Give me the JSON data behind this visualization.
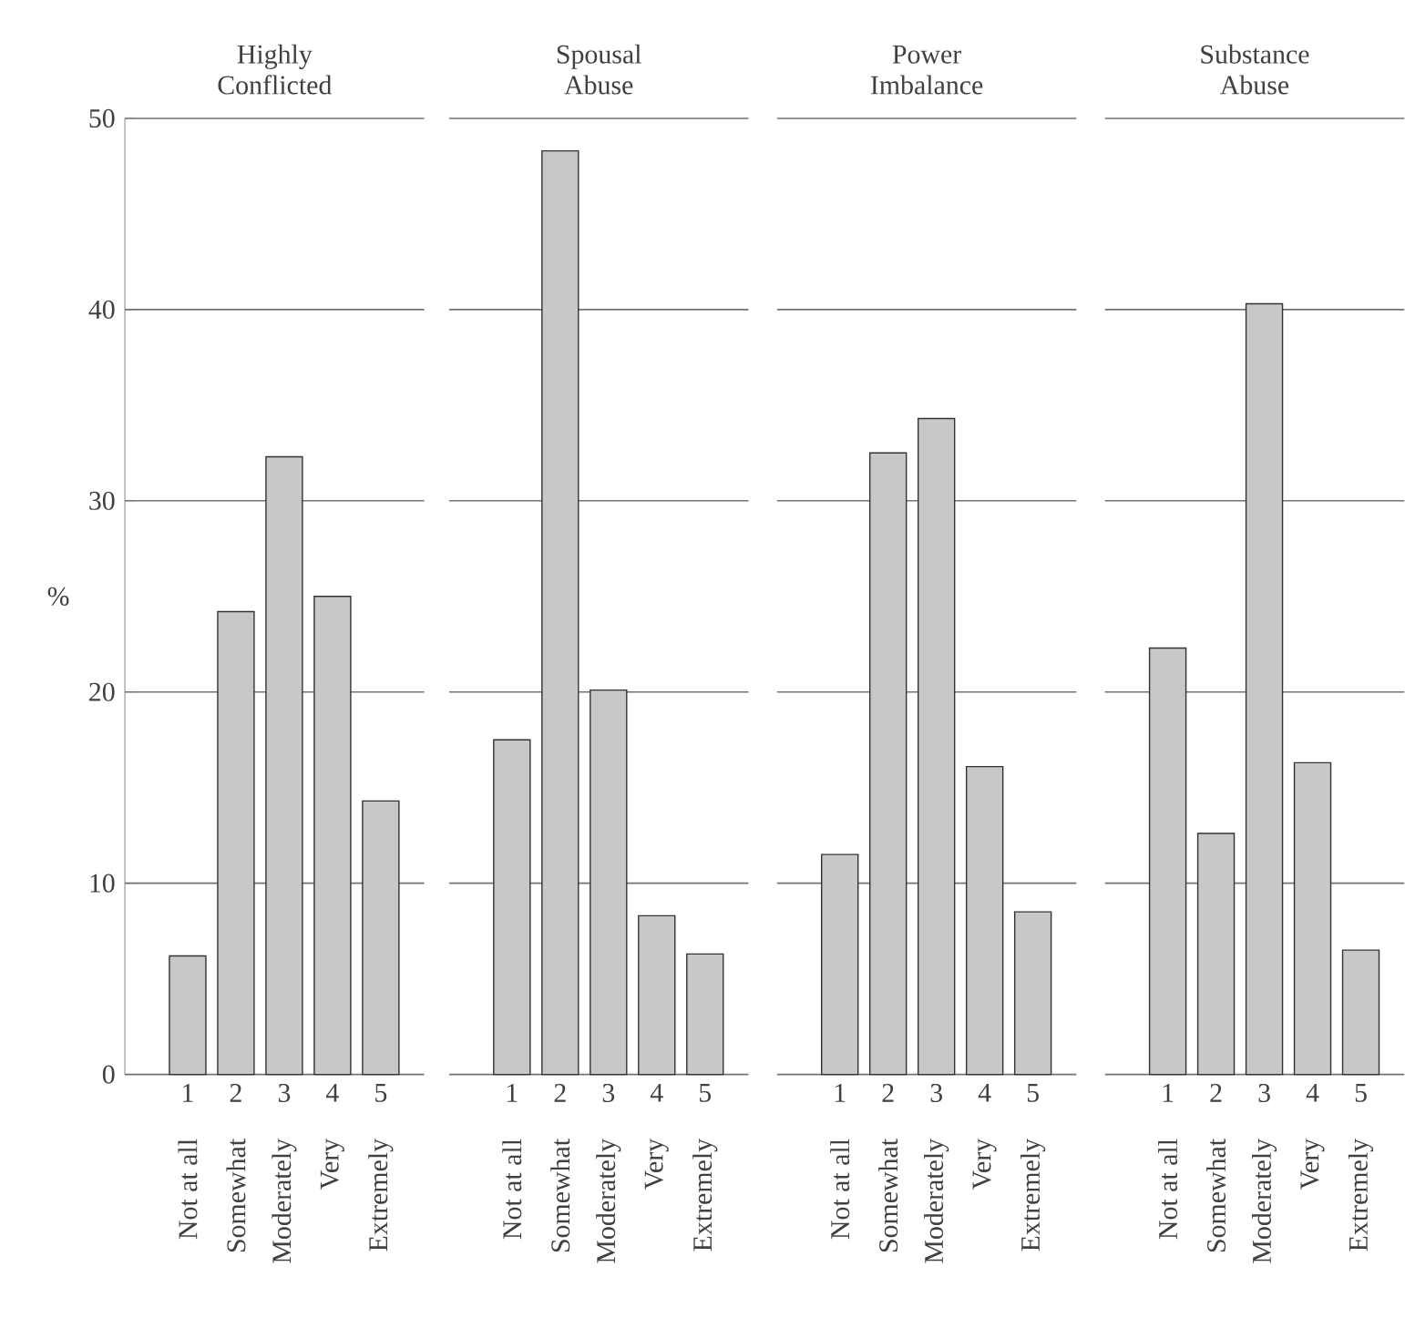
{
  "chart_data": [
    {
      "type": "bar",
      "title": "Highly Conflicted",
      "ylabel": "%",
      "categories": [
        "1",
        "2",
        "3",
        "4",
        "5"
      ],
      "values": [
        6.2,
        24.2,
        32.3,
        25.0,
        14.3
      ],
      "color": "#c8c8c8",
      "ylim": [
        0,
        50
      ],
      "yticks": [
        0,
        10,
        20,
        30,
        40,
        50
      ],
      "grid": "y",
      "annotations": [
        "Not at all",
        "Somewhat",
        "Moderately",
        "Very",
        "Extremely"
      ]
    },
    {
      "type": "bar",
      "title": "Spousal Abuse",
      "categories": [
        "1",
        "2",
        "3",
        "4",
        "5"
      ],
      "values": [
        17.5,
        48.3,
        20.1,
        8.3,
        6.3
      ],
      "color": "#c8c8c8",
      "ylim": [
        0,
        50
      ],
      "yticks": [
        0,
        10,
        20,
        30,
        40,
        50
      ],
      "grid": "y",
      "tick_labels": "x",
      "annotations": [
        "Not at all",
        "Somewhat",
        "Moderately",
        "Very",
        "Extremely"
      ]
    },
    {
      "type": "bar",
      "title": "Power Imbalance",
      "categories": [
        "1",
        "2",
        "3",
        "4",
        "5"
      ],
      "values": [
        11.5,
        32.5,
        34.3,
        16.1,
        8.5
      ],
      "color": "#c8c8c8",
      "ylim": [
        0,
        50
      ],
      "yticks": [
        0,
        10,
        20,
        30,
        40,
        50
      ],
      "grid": "y",
      "tick_labels": "x",
      "annotations": [
        "Not at all",
        "Somewhat",
        "Moderately",
        "Very",
        "Extremely"
      ]
    },
    {
      "type": "bar",
      "title": "Substance Abuse",
      "categories": [
        "1",
        "2",
        "3",
        "4",
        "5"
      ],
      "values": [
        22.3,
        12.6,
        40.3,
        16.3,
        6.5
      ],
      "color": "#c8c8c8",
      "ylim": [
        0,
        50
      ],
      "yticks": [
        0,
        10,
        20,
        30,
        40,
        50
      ],
      "grid": "y",
      "tick_labels": "x",
      "annotations": [
        "Not at all",
        "Somewhat",
        "Moderately",
        "Very",
        "Extremely"
      ]
    }
  ]
}
